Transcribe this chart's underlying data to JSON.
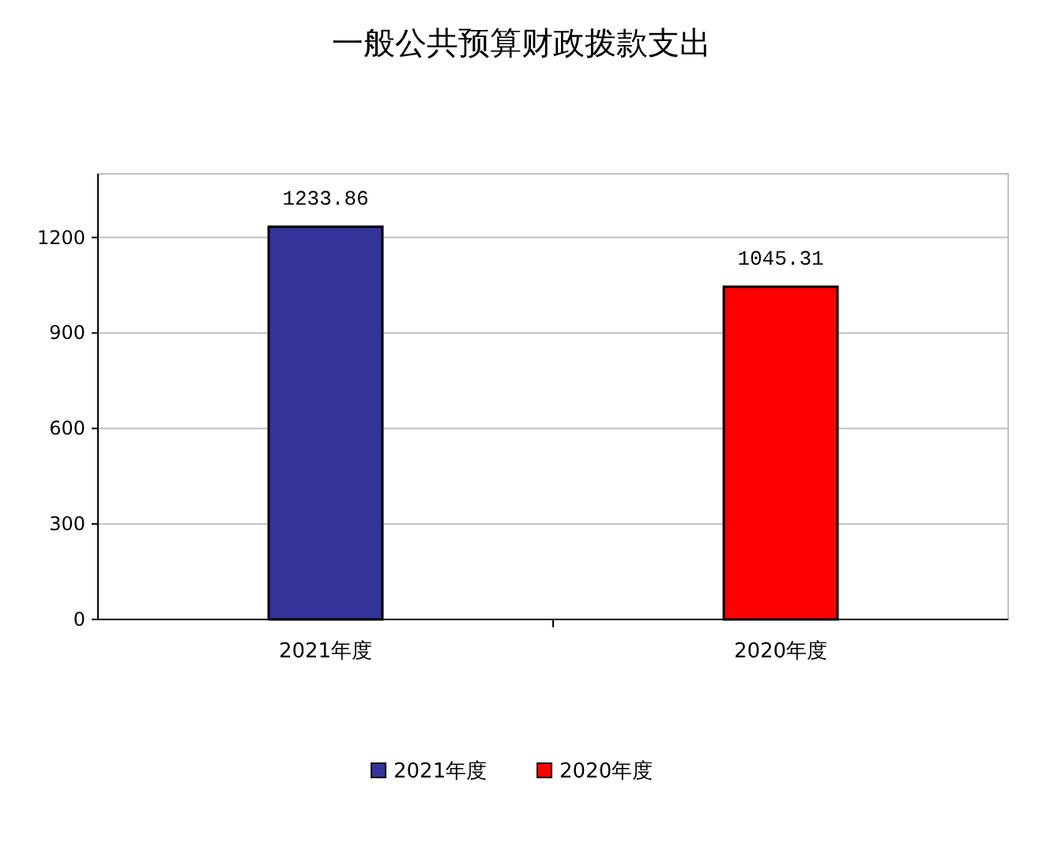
{
  "chart_data": {
    "type": "bar",
    "title": "一般公共预算财政拨款支出",
    "categories": [
      "2021年度",
      "2020年度"
    ],
    "series": [
      {
        "name": "2021年度",
        "color": "#333399",
        "values": [
          1233.86,
          null
        ]
      },
      {
        "name": "2020年度",
        "color": "#ff0000",
        "values": [
          null,
          1045.31
        ]
      }
    ],
    "ylim": [
      0,
      1400
    ],
    "yticks": [
      0,
      300,
      600,
      900,
      1200
    ],
    "grid": "y",
    "data_labels": true,
    "legend": "bottom"
  }
}
